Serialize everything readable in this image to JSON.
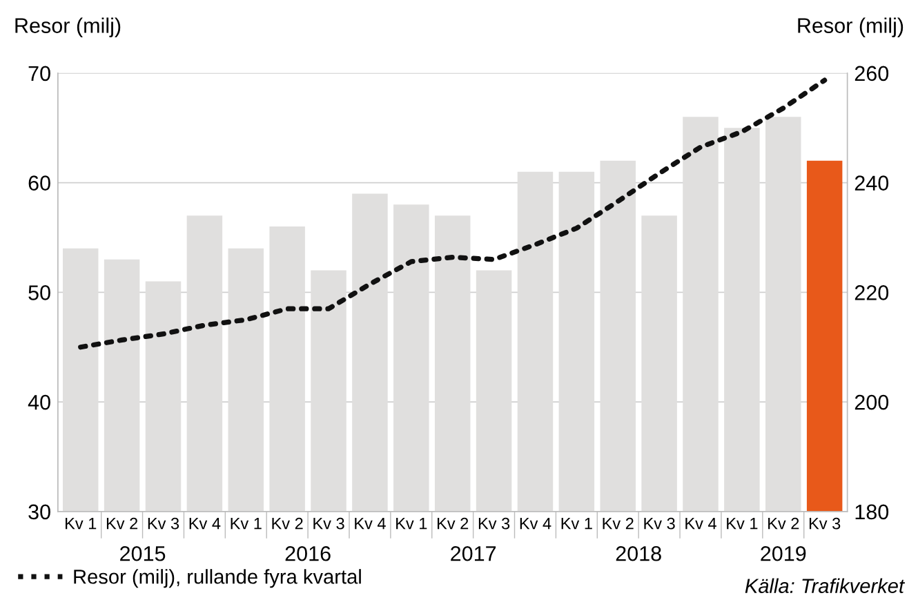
{
  "chart_data": {
    "type": "bar",
    "ylabel": "Resor (milj)",
    "y2label": "Resor (milj)",
    "categories": [
      "Kv 1",
      "Kv 2",
      "Kv 3",
      "Kv 4",
      "Kv 1",
      "Kv 2",
      "Kv 3",
      "Kv 4",
      "Kv 1",
      "Kv 2",
      "Kv 3",
      "Kv 4",
      "Kv 1",
      "Kv 2",
      "Kv 3",
      "Kv 4",
      "Kv 1",
      "Kv 2",
      "Kv 3"
    ],
    "series": [
      {
        "colors": [
          "#e0dfde",
          "#e0dfde",
          "#e0dfde",
          "#e0dfde",
          "#e0dfde",
          "#e0dfde",
          "#e0dfde",
          "#e0dfde",
          "#e0dfde",
          "#e0dfde",
          "#e0dfde",
          "#e0dfde",
          "#e0dfde",
          "#e0dfde",
          "#e0dfde",
          "#e0dfde",
          "#e0dfde",
          "#e0dfde",
          "#e8591a"
        ],
        "values": [
          54,
          53,
          51,
          57,
          54,
          56,
          52,
          59,
          58,
          57,
          52,
          61,
          61,
          62,
          57,
          66,
          65,
          66,
          62
        ]
      },
      {
        "type": "line",
        "axis": "y2",
        "name": "Resor (milj), rullande fyra kvartal",
        "color": "#111111",
        "line_style": "dotted",
        "values": [
          210,
          211.3,
          212.4,
          214,
          215,
          217,
          217,
          221.5,
          225.6,
          226.4,
          226,
          228.7,
          231.7,
          236.6,
          241.7,
          246.5,
          249.3,
          253.6,
          258.7
        ]
      }
    ],
    "ylim": [
      30,
      70
    ],
    "yticks": [
      30,
      40,
      50,
      60,
      70
    ],
    "y2lim": [
      180,
      260
    ],
    "y2ticks": [
      180,
      200,
      220,
      240,
      260
    ],
    "grid": "y",
    "legend": "bottom left",
    "annotations": [
      "2015",
      "2016",
      "2017",
      "2018",
      "2019",
      "Källa: Trafikverket"
    ]
  }
}
